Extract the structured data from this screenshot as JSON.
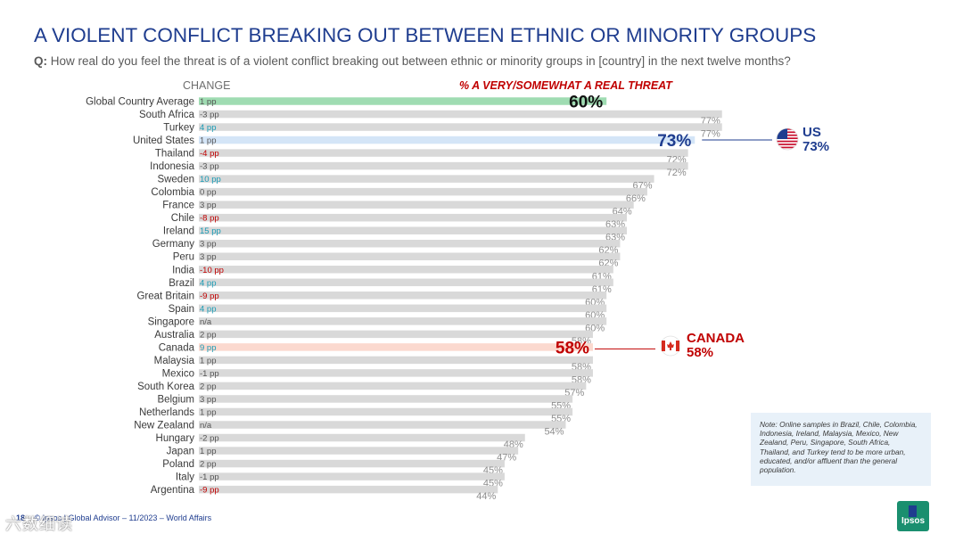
{
  "header": {
    "title": "A VIOLENT CONFLICT BREAKING OUT BETWEEN ETHNIC OR MINORITY GROUPS",
    "question_prefix": "Q:",
    "question": "How real do you feel the threat is of a violent conflict breaking out between ethnic or minority groups in [country] in the next twelve months?"
  },
  "chart_data": {
    "type": "bar",
    "orientation": "horizontal",
    "change_header": "CHANGE",
    "metric_header": "% A VERY/SOMEWHAT A REAL THREAT",
    "categories": [
      "Global Country Average",
      "South Africa",
      "Turkey",
      "United States",
      "Thailand",
      "Indonesia",
      "Sweden",
      "Colombia",
      "France",
      "Chile",
      "Ireland",
      "Germany",
      "Peru",
      "India",
      "Brazil",
      "Great Britain",
      "Spain",
      "Singapore",
      "Australia",
      "Canada",
      "Malaysia",
      "Mexico",
      "South Korea",
      "Belgium",
      "Netherlands",
      "New Zealand",
      "Hungary",
      "Japan",
      "Poland",
      "Italy",
      "Argentina"
    ],
    "values": [
      60,
      77,
      77,
      73,
      72,
      72,
      67,
      66,
      64,
      63,
      63,
      62,
      62,
      61,
      61,
      60,
      60,
      60,
      58,
      58,
      58,
      58,
      57,
      55,
      55,
      54,
      48,
      47,
      45,
      45,
      44
    ],
    "value_labels": [
      "60%",
      "77%",
      "77%",
      "73%",
      "72%",
      "72%",
      "67%",
      "66%",
      "64%",
      "63%",
      "63%",
      "62%",
      "62%",
      "61%",
      "61%",
      "60%",
      "60%",
      "60%",
      "58%",
      "58%",
      "58%",
      "58%",
      "57%",
      "55%",
      "55%",
      "54%",
      "48%",
      "47%",
      "45%",
      "45%",
      "44%"
    ],
    "change_labels": [
      "1 pp",
      "-3 pp",
      "4 pp",
      "1 pp",
      "-4 pp",
      "-3 pp",
      "10 pp",
      "0 pp",
      "3 pp",
      "-8 pp",
      "15 pp",
      "3 pp",
      "3 pp",
      "-10 pp",
      "4 pp",
      "-9 pp",
      "4 pp",
      "n/a",
      "2 pp",
      "9 pp",
      "1 pp",
      "-1 pp",
      "2 pp",
      "3 pp",
      "1 pp",
      "n/a",
      "-2 pp",
      "1 pp",
      "2 pp",
      "-1 pp",
      "-9 pp"
    ],
    "highlights": {
      "Global Country Average": "#9fdcb2",
      "United States": "#d4e5f7",
      "Canada": "#fbd9cf"
    },
    "colors": {
      "bar": "#d9d9d9",
      "value_label": "#8c8c8c",
      "change_positive": "#1a9bb5",
      "change_negative": "#c00000",
      "change_neutral": "#555555",
      "us": "#1f3d8f",
      "canada": "#c00000"
    }
  },
  "callouts": {
    "us": {
      "label": "US",
      "value": "73%"
    },
    "canada": {
      "label": "CANADA",
      "value": "58%"
    }
  },
  "note": "Note: Online samples in Brazil, Chile, Colombia, Indonesia, Ireland, Malaysia, Mexico, New Zealand, Peru, Singapore, South Africa, Thailand, and Turkey tend to be more urban, educated, and/or affluent than the general population.",
  "footer": {
    "page": "18",
    "source": "© Ipsos | Global Advisor – 11/2023 – World Affairs",
    "watermark": "六数细读"
  },
  "logo_text": "Ipsos"
}
